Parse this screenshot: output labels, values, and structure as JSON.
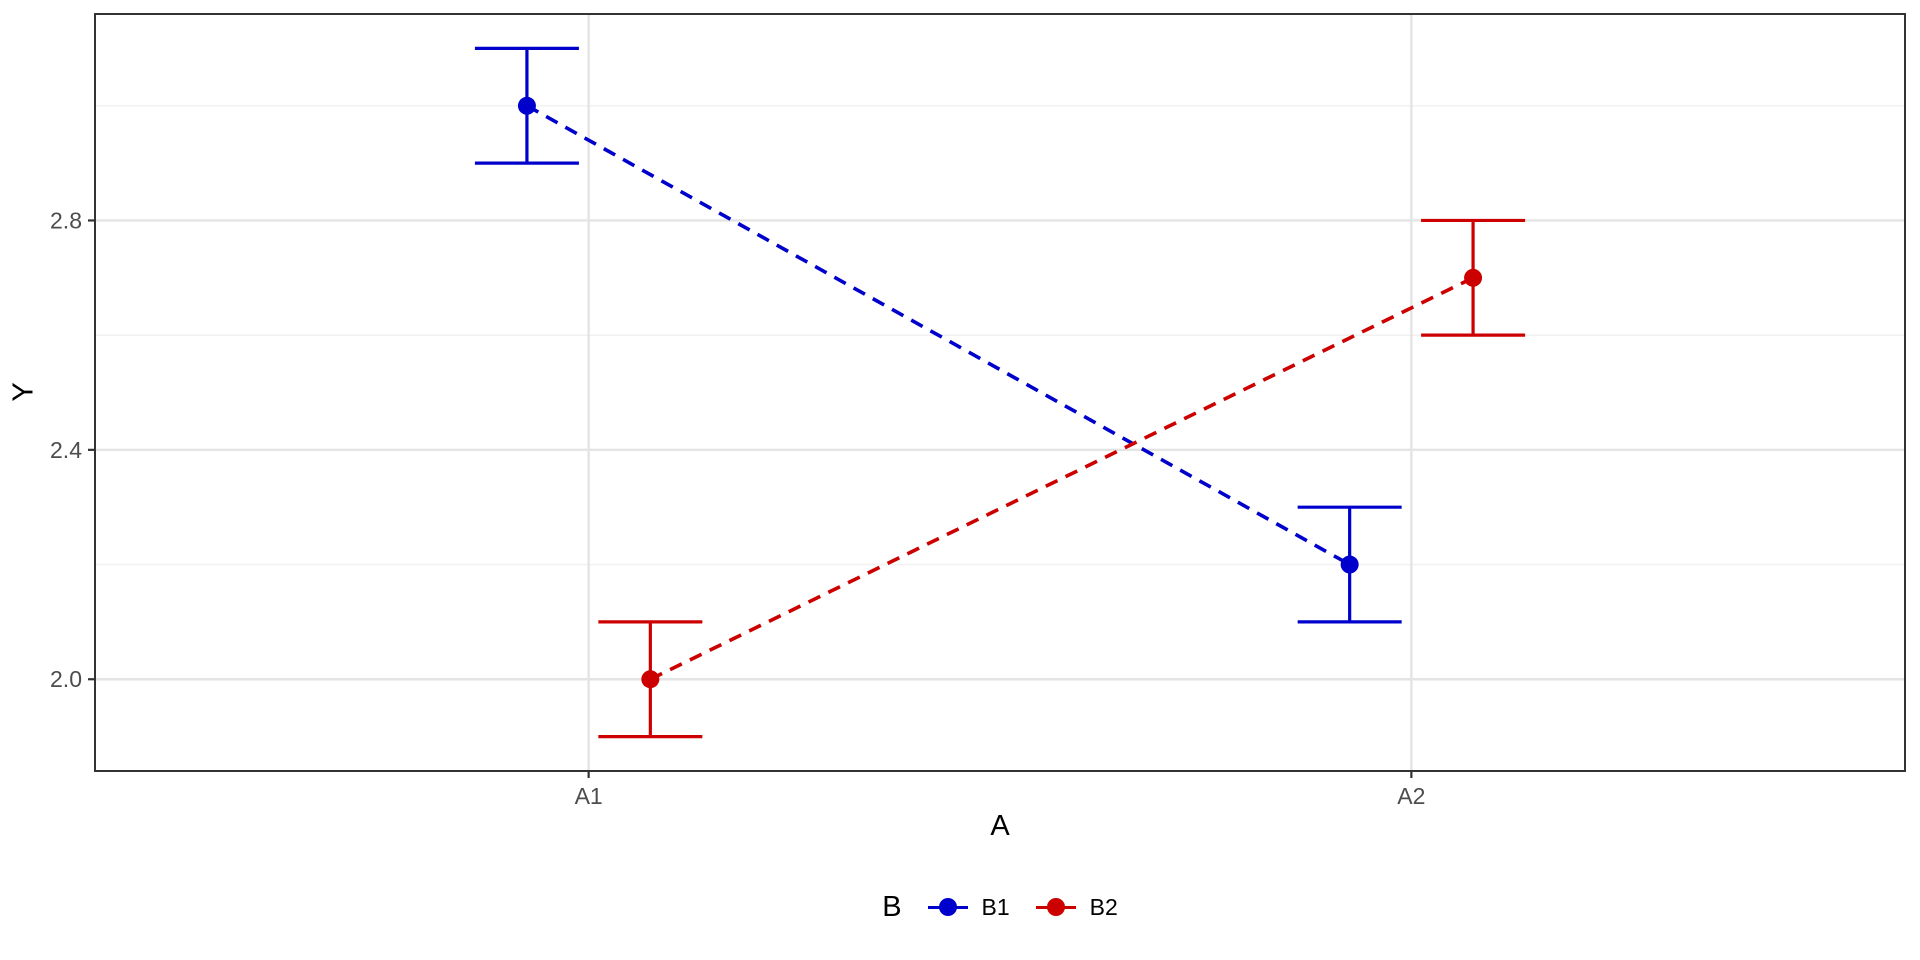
{
  "chart_data": {
    "type": "line",
    "subtype": "interaction-plot-with-error-bars",
    "title": "",
    "xlabel": "A",
    "ylabel": "Y",
    "categories": [
      "A1",
      "A2"
    ],
    "series": [
      {
        "name": "B1",
        "color": "#0000CD",
        "means": [
          3.0,
          2.2
        ],
        "ymin": [
          2.9,
          2.1
        ],
        "ymax": [
          3.1,
          2.3
        ]
      },
      {
        "name": "B2",
        "color": "#CD0000",
        "means": [
          2.0,
          2.7
        ],
        "ymin": [
          1.9,
          2.6
        ],
        "ymax": [
          2.1,
          2.8
        ]
      }
    ],
    "y_ticks": [
      2.0,
      2.4,
      2.8
    ],
    "y_tick_labels": [
      "2.0",
      "2.4",
      "2.8"
    ],
    "y_minor_ticks": [
      2.2,
      2.6,
      3.0
    ],
    "ylim": [
      1.84,
      3.16
    ],
    "line_style": "dashed",
    "grid": true,
    "legend": {
      "title": "B",
      "position": "bottom",
      "entries": [
        "B1",
        "B2"
      ]
    },
    "layout": {
      "background": "#FFFFFF",
      "panel_border": "#333333",
      "grid_major": "#E4E4E4",
      "grid_minor": "#F2F2F2",
      "tick_color": "#333333",
      "tick_label_color": "#4D4D4D",
      "dodge": 0.075
    }
  }
}
